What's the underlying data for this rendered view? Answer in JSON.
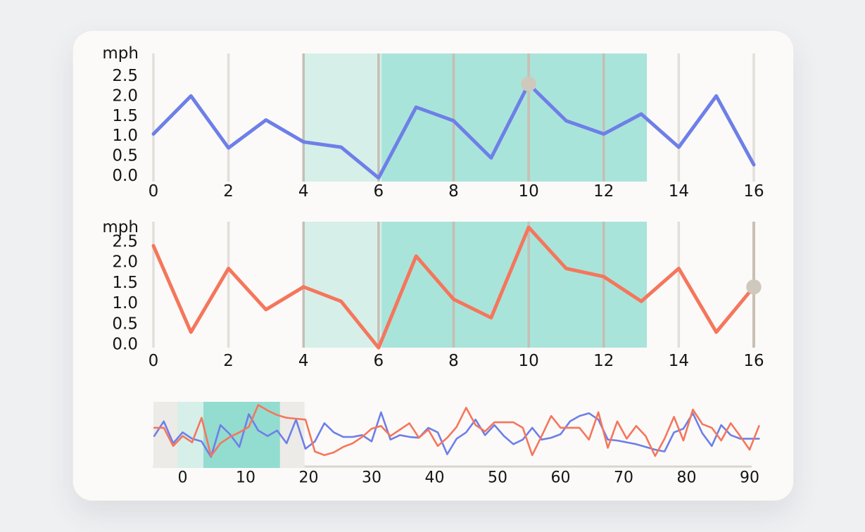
{
  "colors": {
    "background": "#eef0f2",
    "card": "#fbfaf8",
    "text": "#151515",
    "blue": "#6e7fe8",
    "orange": "#f5765c",
    "teal_light": "#d6efe9",
    "teal_dark": "#a9e4da",
    "teal_dark_overview": "#93dcd0",
    "window_gray": "#edebe7",
    "grid": "#e2dfd9",
    "grid_in_region": "#c5beb4",
    "cursor_line": "#c9c0b4",
    "dot": "#cfc8bc",
    "axis_line": "#d9d6cf"
  },
  "chart_data": [
    {
      "id": "top",
      "type": "line",
      "unit": "mph",
      "xlim": [
        0,
        16
      ],
      "x": [
        0,
        1,
        2,
        3,
        4,
        5,
        6,
        7,
        8,
        9,
        10,
        11,
        12,
        13,
        14,
        15,
        16
      ],
      "series": [
        {
          "name": "speed-blue",
          "color_key": "blue",
          "values": [
            1.05,
            2.0,
            0.7,
            1.4,
            0.85,
            0.72,
            -0.05,
            1.72,
            1.38,
            0.45,
            2.3,
            1.38,
            1.05,
            1.55,
            0.72,
            2.0,
            0.28
          ]
        }
      ],
      "gridlines": [
        0,
        2,
        4,
        6,
        8,
        10,
        12,
        14,
        16
      ],
      "x_ticks": [
        {
          "v": 0,
          "label": "0"
        },
        {
          "v": 2,
          "label": "2"
        },
        {
          "v": 4,
          "label": "4"
        },
        {
          "v": 6,
          "label": "6"
        },
        {
          "v": 8,
          "label": "8"
        },
        {
          "v": 10,
          "label": "10"
        },
        {
          "v": 12,
          "label": "12"
        },
        {
          "v": 14,
          "label": "14"
        },
        {
          "v": 16,
          "label": "16"
        }
      ],
      "y_ticks": [
        {
          "v": 0.0,
          "label": "0.0"
        },
        {
          "v": 0.5,
          "label": "0.5"
        },
        {
          "v": 1.0,
          "label": "1.0"
        },
        {
          "v": 1.5,
          "label": "1.5"
        },
        {
          "v": 2.0,
          "label": "2.0"
        },
        {
          "v": 2.5,
          "label": "2.5"
        }
      ],
      "highlights": [
        {
          "from": 4,
          "to": 6.08,
          "color_key": "teal_light"
        },
        {
          "from": 6.08,
          "to": 13.15,
          "color_key": "teal_dark"
        }
      ],
      "cursor": {
        "x": 10,
        "y": 2.3
      }
    },
    {
      "id": "middle",
      "type": "line",
      "unit": "mph",
      "xlim": [
        0,
        16
      ],
      "x": [
        0,
        1,
        2,
        3,
        4,
        5,
        6,
        7,
        8,
        9,
        10,
        11,
        12,
        13,
        14,
        15,
        16
      ],
      "series": [
        {
          "name": "speed-orange",
          "color_key": "orange",
          "values": [
            2.4,
            0.3,
            1.85,
            0.85,
            1.4,
            1.05,
            -0.08,
            2.15,
            1.1,
            0.65,
            2.85,
            1.85,
            1.65,
            1.05,
            1.85,
            0.3,
            1.4
          ]
        }
      ],
      "gridlines": [
        0,
        2,
        4,
        6,
        8,
        10,
        12,
        14,
        16
      ],
      "x_ticks": [
        {
          "v": 0,
          "label": "0"
        },
        {
          "v": 2,
          "label": "2"
        },
        {
          "v": 4,
          "label": "4"
        },
        {
          "v": 6,
          "label": "6"
        },
        {
          "v": 8,
          "label": "8"
        },
        {
          "v": 10,
          "label": "10"
        },
        {
          "v": 12,
          "label": "12"
        },
        {
          "v": 14,
          "label": "14"
        },
        {
          "v": 16,
          "label": "16"
        }
      ],
      "y_ticks": [
        {
          "v": 0.0,
          "label": "0.0"
        },
        {
          "v": 0.5,
          "label": "0.5"
        },
        {
          "v": 1.0,
          "label": "1.0"
        },
        {
          "v": 1.5,
          "label": "1.5"
        },
        {
          "v": 2.0,
          "label": "2.0"
        },
        {
          "v": 2.5,
          "label": "2.5"
        }
      ],
      "highlights": [
        {
          "from": 4,
          "to": 6.08,
          "color_key": "teal_light"
        },
        {
          "from": 6.08,
          "to": 13.15,
          "color_key": "teal_dark"
        }
      ],
      "cursor": {
        "x": 16,
        "y": 1.4
      }
    },
    {
      "id": "overview",
      "type": "line",
      "xlim": [
        -4.7,
        91.6
      ],
      "x": [
        -4.5,
        -3,
        -1.5,
        0,
        1.5,
        3,
        4.5,
        6,
        7.5,
        9,
        10.5,
        12,
        13.5,
        15,
        16.5,
        18,
        19.5,
        21,
        22.5,
        24,
        25.5,
        27,
        28.5,
        30,
        31.5,
        33,
        34.5,
        36,
        37.5,
        39,
        40.5,
        42,
        43.5,
        45,
        46.5,
        48,
        49.5,
        51,
        52.5,
        54,
        55.5,
        57,
        58.5,
        60,
        61.5,
        63,
        64.5,
        66,
        67.5,
        69,
        70.5,
        72,
        73.5,
        75,
        76.5,
        78,
        79.5,
        81,
        82.5,
        84,
        85.5,
        87,
        88.5,
        90,
        91.5
      ],
      "series": [
        {
          "name": "speed-blue",
          "color_key": "blue",
          "values": [
            1.3,
            2.1,
            0.9,
            1.5,
            1.15,
            1.0,
            0.15,
            1.9,
            1.4,
            0.7,
            2.5,
            1.6,
            1.3,
            1.6,
            0.9,
            2.2,
            0.6,
            1.0,
            2.0,
            1.5,
            1.25,
            1.25,
            1.35,
            1.0,
            2.6,
            1.1,
            1.35,
            1.25,
            1.2,
            1.75,
            1.5,
            0.3,
            1.15,
            1.5,
            2.2,
            1.35,
            1.9,
            1.3,
            0.85,
            1.1,
            1.75,
            1.1,
            1.2,
            1.4,
            2.1,
            2.4,
            2.55,
            2.2,
            1.1,
            1.05,
            0.95,
            0.85,
            0.7,
            0.55,
            0.45,
            1.5,
            1.7,
            2.55,
            1.45,
            0.75,
            1.9,
            1.35,
            1.15,
            1.15,
            1.15
          ]
        },
        {
          "name": "speed-orange",
          "color_key": "orange",
          "values": [
            1.75,
            1.75,
            0.75,
            1.3,
            0.95,
            2.3,
            0.2,
            0.9,
            1.25,
            1.5,
            1.8,
            3.0,
            2.7,
            2.45,
            2.3,
            2.25,
            2.2,
            0.45,
            0.25,
            0.4,
            0.7,
            0.9,
            1.25,
            1.7,
            1.85,
            1.3,
            1.65,
            2.0,
            1.2,
            1.65,
            0.75,
            1.2,
            1.8,
            2.85,
            1.9,
            1.55,
            2.05,
            2.05,
            2.05,
            1.75,
            0.25,
            1.3,
            2.4,
            1.75,
            1.75,
            1.75,
            1.1,
            2.6,
            0.65,
            2.1,
            1.15,
            1.85,
            1.3,
            0.2,
            1.15,
            2.35,
            1.05,
            2.75,
            1.95,
            1.75,
            1.05,
            2.0,
            1.3,
            0.55,
            1.85
          ]
        }
      ],
      "x_ticks": [
        {
          "v": 0,
          "label": "0"
        },
        {
          "v": 10,
          "label": "10"
        },
        {
          "v": 20,
          "label": "20"
        },
        {
          "v": 30,
          "label": "30"
        },
        {
          "v": 40,
          "label": "40"
        },
        {
          "v": 50,
          "label": "50"
        },
        {
          "v": 60,
          "label": "60"
        },
        {
          "v": 70,
          "label": "70"
        },
        {
          "v": 80,
          "label": "80"
        },
        {
          "v": 90,
          "label": "90"
        }
      ],
      "highlights": [
        {
          "from": -4.64,
          "to": 19.35,
          "color_key": "window_gray"
        },
        {
          "from": -0.84,
          "to": 3.3,
          "color_key": "teal_light"
        },
        {
          "from": 3.3,
          "to": 15.45,
          "color_key": "teal_dark_overview"
        }
      ]
    }
  ]
}
